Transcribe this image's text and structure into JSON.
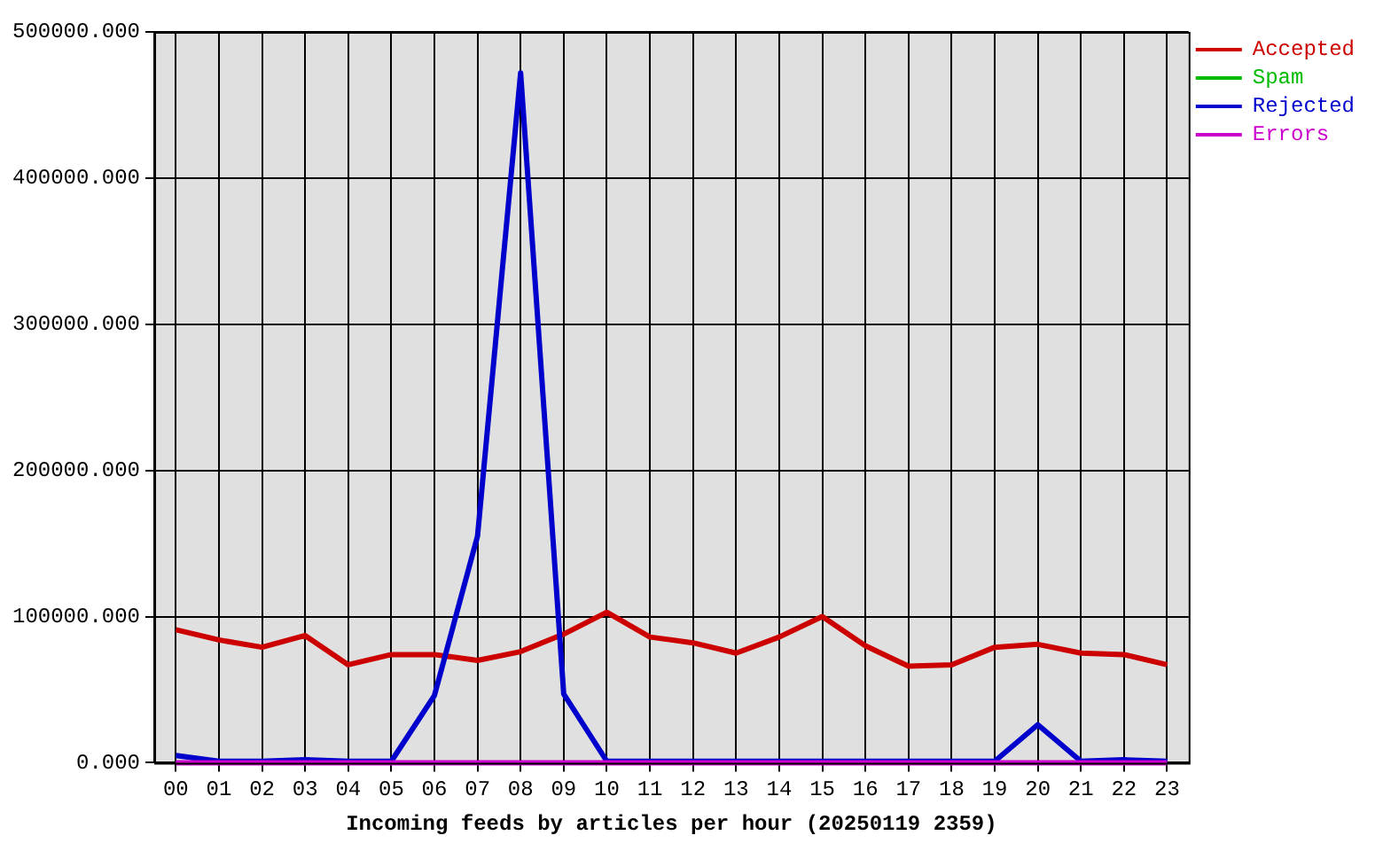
{
  "chart_data": {
    "type": "line",
    "xlabel": "Incoming feeds by articles per hour (20250119 2359)",
    "categories": [
      "00",
      "01",
      "02",
      "03",
      "04",
      "05",
      "06",
      "07",
      "08",
      "09",
      "10",
      "11",
      "12",
      "13",
      "14",
      "15",
      "16",
      "17",
      "18",
      "19",
      "20",
      "21",
      "22",
      "23"
    ],
    "series": [
      {
        "name": "Accepted",
        "color": "#cc0000",
        "values": [
          91000,
          84000,
          79000,
          87000,
          67000,
          74000,
          74000,
          70000,
          76000,
          88000,
          103000,
          86000,
          82000,
          75000,
          86000,
          100000,
          80000,
          66000,
          67000,
          79000,
          81000,
          75000,
          74000,
          67000
        ]
      },
      {
        "name": "Spam",
        "color": "#00bb00",
        "values": [
          null,
          null,
          null,
          null,
          null,
          null,
          null,
          null,
          null,
          null,
          null,
          null,
          null,
          null,
          null,
          null,
          null,
          null,
          null,
          null,
          null,
          null,
          null,
          null
        ]
      },
      {
        "name": "Rejected",
        "color": "#0000cc",
        "values": [
          5000,
          1000,
          1000,
          2000,
          1000,
          1000,
          46000,
          155000,
          472000,
          47000,
          1000,
          1000,
          1000,
          1000,
          1000,
          1000,
          1000,
          1000,
          1000,
          1000,
          26000,
          1000,
          2000,
          1000
        ]
      },
      {
        "name": "Errors",
        "color": "#cc00cc",
        "values": [
          0,
          0,
          0,
          0,
          0,
          0,
          0,
          0,
          0,
          0,
          0,
          0,
          0,
          0,
          0,
          0,
          0,
          0,
          0,
          0,
          0,
          0,
          0,
          0
        ]
      }
    ],
    "ylim": [
      0,
      500000
    ],
    "yticks": [
      {
        "value": 0,
        "label": "0.000"
      },
      {
        "value": 100000,
        "label": "100000.000"
      },
      {
        "value": 200000,
        "label": "200000.000"
      },
      {
        "value": 300000,
        "label": "300000.000"
      },
      {
        "value": 400000,
        "label": "400000.000"
      },
      {
        "value": 500000,
        "label": "500000.000"
      }
    ],
    "grid": true,
    "legend": "top right",
    "marker": "none",
    "line_style": "solid"
  }
}
